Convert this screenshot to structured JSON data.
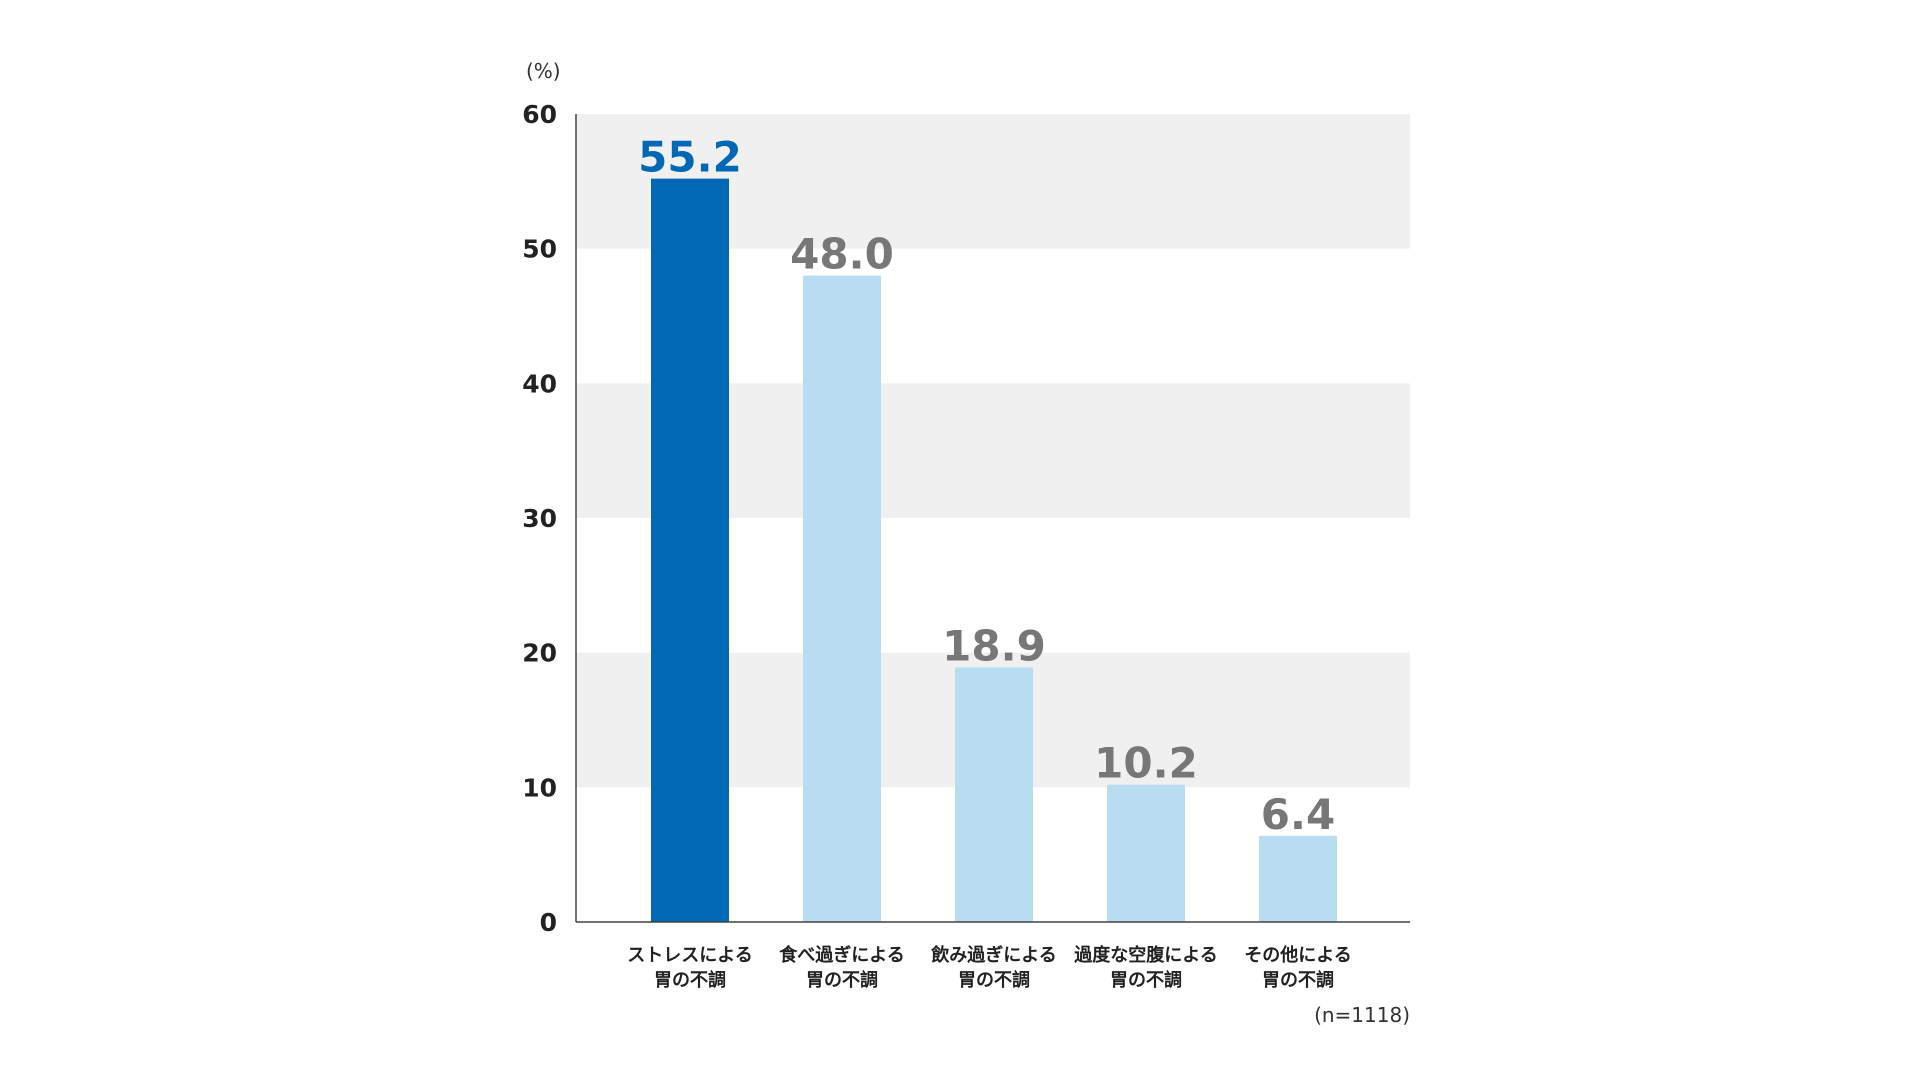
{
  "chart_data": {
    "type": "bar",
    "ylabel": "(%)",
    "ylim": [
      0,
      60
    ],
    "yticks": [
      0,
      10,
      20,
      30,
      40,
      50,
      60
    ],
    "categories": [
      [
        "ストレスによる",
        "胃の不調"
      ],
      [
        "食べ過ぎによる",
        "胃の不調"
      ],
      [
        "飲み過ぎによる",
        "胃の不調"
      ],
      [
        "過度な空腹による",
        "胃の不調"
      ],
      [
        "その他による",
        "胃の不調"
      ]
    ],
    "values": [
      55.2,
      48.0,
      18.9,
      10.2,
      6.4
    ],
    "value_labels": [
      "55.2",
      "48.0",
      "18.9",
      "10.2",
      "6.4"
    ],
    "highlight_index": 0,
    "note": "(n=1118)",
    "grid": "alternating bands"
  },
  "colors": {
    "highlight_bar": "#0068b4",
    "bar": "#b8ddf1",
    "highlight_value": "#0068b4",
    "value": "#777777",
    "band": "#f0f0f0",
    "axis": "#444444"
  }
}
